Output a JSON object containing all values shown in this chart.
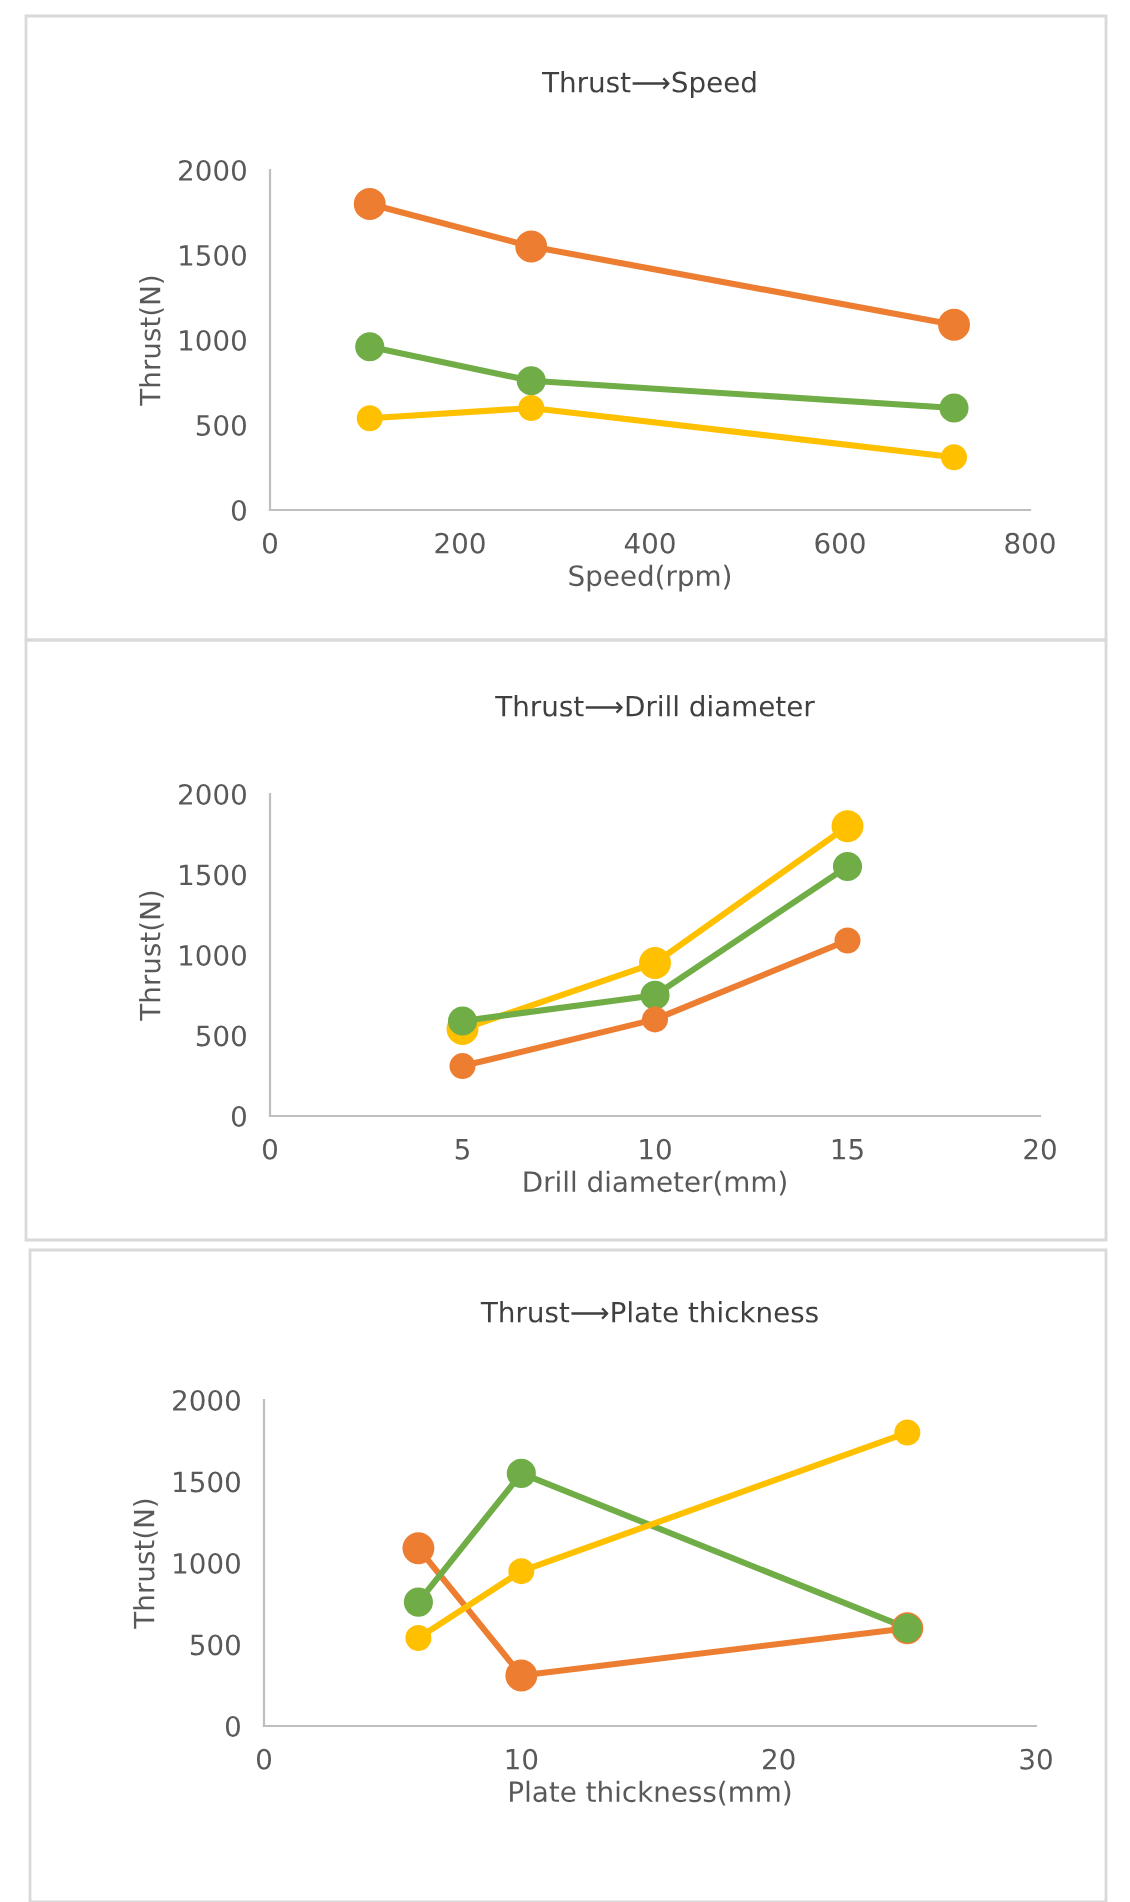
{
  "chart_data": [
    {
      "type": "line",
      "title": "Thrust⟶Speed",
      "xlabel": "Speed(rpm)",
      "ylabel": "Thrust(N)",
      "x": [
        105,
        275,
        720
      ],
      "xlim": [
        0,
        800
      ],
      "xticks": [
        0,
        200,
        400,
        600,
        800
      ],
      "ylim": [
        0,
        2000
      ],
      "yticks": [
        0,
        500,
        1000,
        1500,
        2000
      ],
      "marker": "circle",
      "line_style": "solid",
      "grid": false,
      "legend": false,
      "series": [
        {
          "color": "#ed7d31",
          "values": [
            1800,
            1550,
            1090
          ]
        },
        {
          "color": "#70ad47",
          "values": [
            960,
            760,
            600
          ]
        },
        {
          "color": "#ffc000",
          "values": [
            540,
            600,
            310
          ]
        }
      ]
    },
    {
      "type": "line",
      "title": "Thrust⟶Drill diameter",
      "xlabel": "Drill diameter(mm)",
      "ylabel": "Thrust(N)",
      "x": [
        5,
        10,
        15
      ],
      "xlim": [
        0,
        20
      ],
      "xticks": [
        0,
        5,
        10,
        15,
        20
      ],
      "ylim": [
        0,
        2000
      ],
      "yticks": [
        0,
        500,
        1000,
        1500,
        2000
      ],
      "marker": "circle",
      "line_style": "solid",
      "grid": false,
      "legend": false,
      "series": [
        {
          "color": "#ffc000",
          "values": [
            540,
            950,
            1800
          ]
        },
        {
          "color": "#70ad47",
          "values": [
            590,
            750,
            1550
          ]
        },
        {
          "color": "#ed7d31",
          "values": [
            310,
            600,
            1090
          ]
        }
      ]
    },
    {
      "type": "line",
      "title": "Thrust⟶Plate thickness",
      "xlabel": "Plate thickness(mm)",
      "ylabel": "Thrust(N)",
      "x": [
        6,
        10,
        25
      ],
      "xlim": [
        0,
        30
      ],
      "xticks": [
        0,
        10,
        20,
        30
      ],
      "ylim": [
        0,
        2000
      ],
      "yticks": [
        0,
        500,
        1000,
        1500,
        2000
      ],
      "marker": "circle",
      "line_style": "solid",
      "grid": false,
      "legend": false,
      "series": [
        {
          "color": "#ed7d31",
          "values": [
            1090,
            310,
            600
          ]
        },
        {
          "color": "#70ad47",
          "values": [
            760,
            1550,
            600
          ]
        },
        {
          "color": "#ffc000",
          "values": [
            540,
            950,
            1800
          ]
        }
      ]
    }
  ]
}
